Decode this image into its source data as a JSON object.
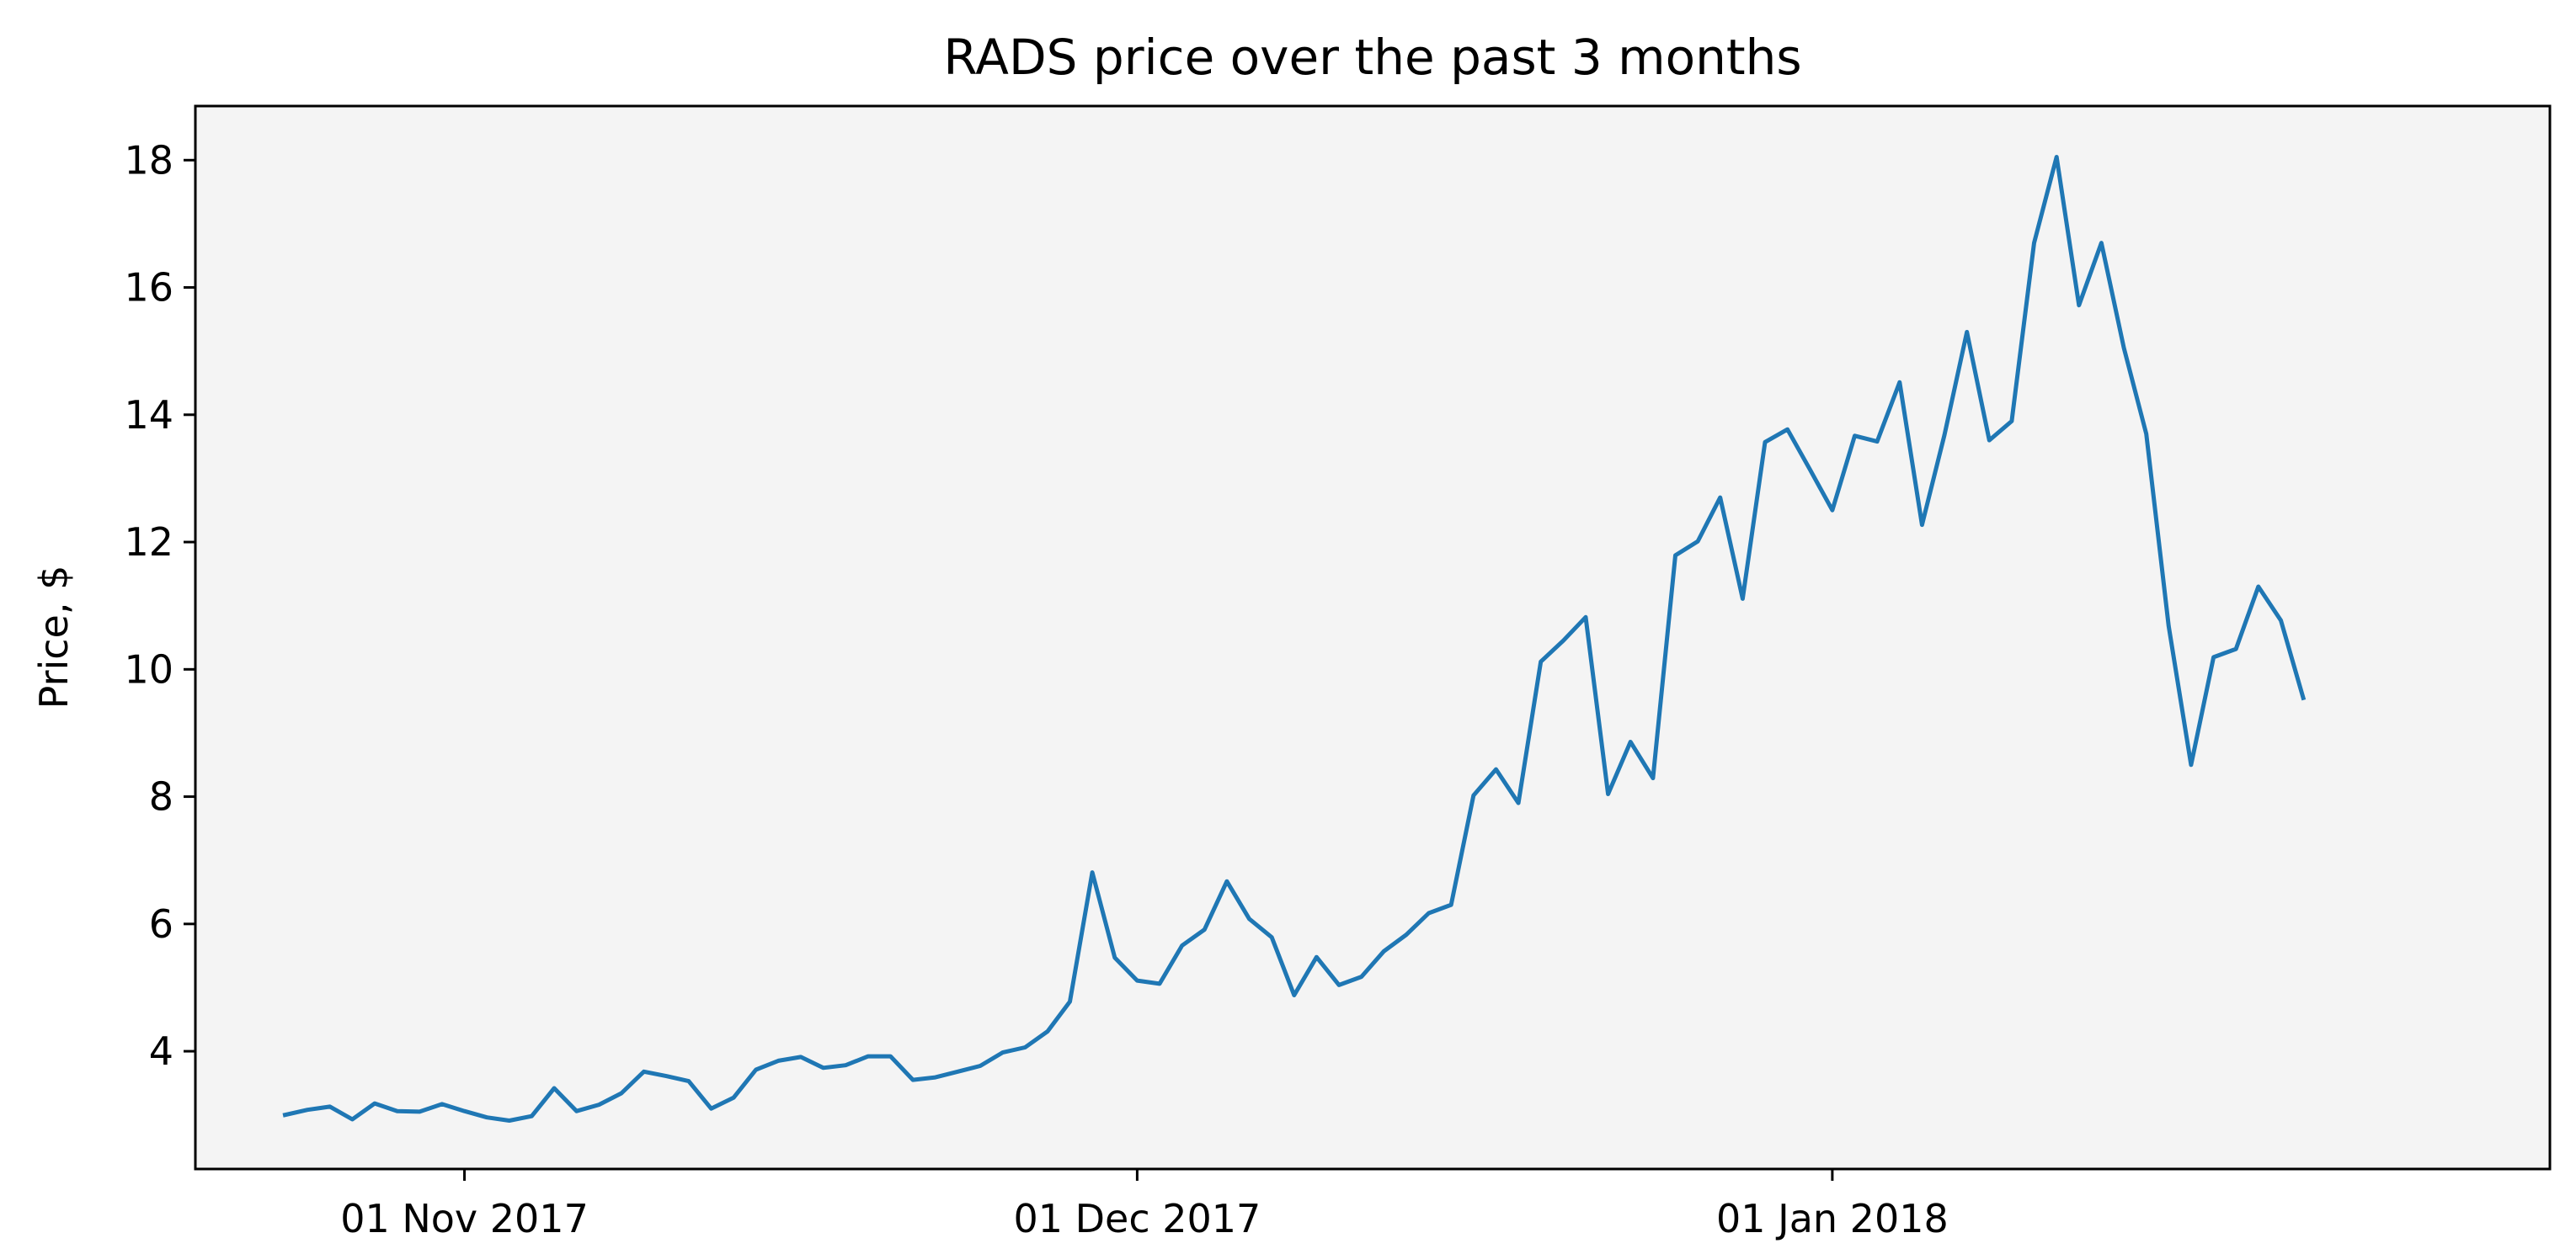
{
  "chart_data": {
    "type": "line",
    "title": "RADS price over the past 3 months",
    "xlabel": "",
    "ylabel": "Price, $",
    "xlim": [
      "2017-10-20",
      "2018-02-02"
    ],
    "ylim": [
      2.15,
      18.85
    ],
    "grid": false,
    "x_ticks": [
      {
        "date": "2017-11-01",
        "label": "01 Nov 2017"
      },
      {
        "date": "2017-12-01",
        "label": "01 Dec 2017"
      },
      {
        "date": "2018-01-01",
        "label": "01 Jan 2018"
      }
    ],
    "y_ticks": [
      4,
      6,
      8,
      10,
      12,
      14,
      16,
      18
    ],
    "colors": {
      "line": "#1f77b4",
      "plot_background": "#f4f4f4",
      "axes": "#000000"
    },
    "series": [
      {
        "start_date": "2017-10-24",
        "step_days": 1,
        "values": [
          3.0,
          3.08,
          3.13,
          2.93,
          3.18,
          3.06,
          3.05,
          3.17,
          3.06,
          2.96,
          2.91,
          2.98,
          3.42,
          3.06,
          3.16,
          3.34,
          3.68,
          3.61,
          3.53,
          3.1,
          3.27,
          3.71,
          3.85,
          3.91,
          3.74,
          3.78,
          3.92,
          3.92,
          3.55,
          3.59,
          3.68,
          3.77,
          3.98,
          4.06,
          4.31,
          4.78,
          6.81,
          5.47,
          5.11,
          5.06,
          5.66,
          5.91,
          6.67,
          6.08,
          5.79,
          4.88,
          5.48,
          5.04,
          5.17,
          5.57,
          5.83,
          6.17,
          6.3,
          8.02,
          8.43,
          7.9,
          10.12,
          10.45,
          10.82,
          8.04,
          8.86,
          8.29,
          11.79,
          12.01,
          12.7,
          11.11,
          13.57,
          13.77,
          13.14,
          12.5,
          13.67,
          13.58,
          14.51,
          12.27,
          13.68,
          15.3,
          13.6,
          13.9,
          16.7,
          18.05,
          15.72,
          16.7,
          15.05,
          13.7,
          10.68,
          8.5,
          10.19,
          10.32,
          11.3,
          10.77,
          9.55
        ]
      }
    ]
  }
}
